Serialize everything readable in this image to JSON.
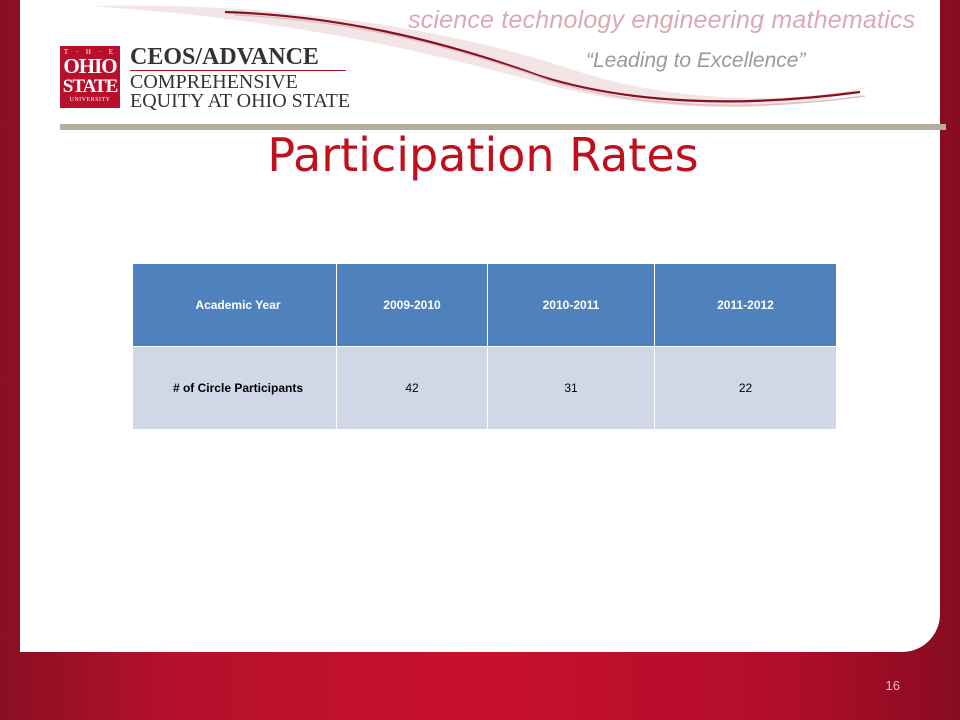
{
  "header": {
    "tagline": "science technology engineering mathematics",
    "motto": "“Leading to Excellence”"
  },
  "logo": {
    "line1": "T · H · E",
    "line2": "OHIO",
    "line3": "STATE",
    "line4": "UNIVERSITY"
  },
  "program": {
    "title": "CEOS/ADVANCE",
    "line1": "COMPREHENSIVE",
    "line2": "EQUITY AT OHIO STATE"
  },
  "slide": {
    "title": "Participation Rates",
    "page_number": "16"
  },
  "table": {
    "headers": [
      "Academic Year",
      "2009-2010",
      "2010-2011",
      "2011-2012"
    ],
    "rows": [
      {
        "label": "# of Circle Participants",
        "values": [
          "42",
          "31",
          "22"
        ]
      }
    ]
  },
  "colors": {
    "brand_red": "#c8102e",
    "title_red": "#c0101e",
    "table_header_blue": "#4f81bd",
    "table_cell_blue": "#d0d8e8",
    "divider_gray": "#b5ae9e"
  }
}
